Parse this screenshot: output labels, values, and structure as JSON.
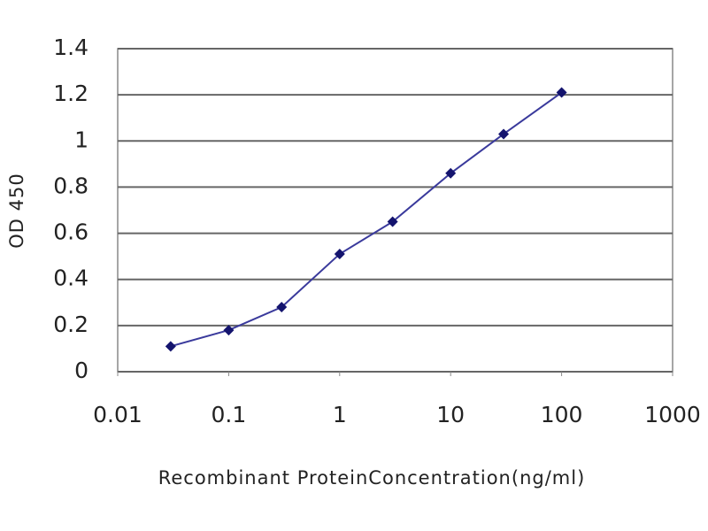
{
  "chart_data": {
    "type": "line",
    "x_label": "Recombinant ProteinConcentration(ng/ml)",
    "y_label": "OD 450",
    "x": [
      0.03,
      0.1,
      0.3,
      1,
      3,
      10,
      30,
      100
    ],
    "series": [
      {
        "color": "#3a3a9c",
        "marker_color": "#14146e",
        "values": [
          0.11,
          0.18,
          0.28,
          0.51,
          0.65,
          0.86,
          1.03,
          1.21
        ]
      }
    ],
    "xlim": [
      0.01,
      1000
    ],
    "xticks": [
      0.01,
      0.1,
      1,
      10,
      100,
      1000
    ],
    "x_log": true,
    "ylim": [
      0,
      1.4
    ],
    "yticks": [
      0,
      0.2,
      0.4,
      0.6,
      0.8,
      1,
      1.2,
      1.4
    ],
    "grid": true
  }
}
